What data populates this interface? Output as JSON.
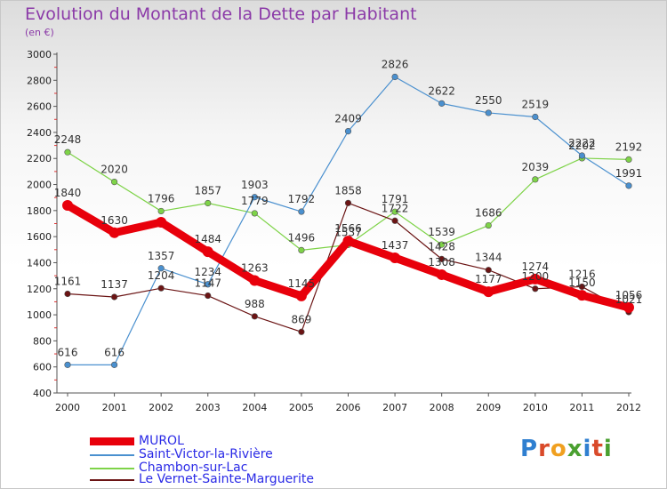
{
  "title": "Evolution du Montant de la Dette par Habitant",
  "subtitle": "(en €)",
  "logo": {
    "text": "Proxiti",
    "letter_colors": [
      "#2f7fd0",
      "#d94a2a",
      "#f0a020",
      "#4aa030",
      "#2f7fd0",
      "#d94a2a",
      "#4aa030"
    ]
  },
  "chart_data": {
    "type": "line",
    "title": "Evolution du Montant de la Dette par Habitant",
    "subtitle": "(en €)",
    "x": [
      "2000",
      "2001",
      "2002",
      "2003",
      "2004",
      "2005",
      "2006",
      "2007",
      "2008",
      "2009",
      "2010",
      "2011",
      "2012"
    ],
    "ylim": [
      400,
      3000
    ],
    "yticks": [
      "400",
      "600",
      "800",
      "1000",
      "1200",
      "1400",
      "1600",
      "1800",
      "2000",
      "2200",
      "2400",
      "2600",
      "2800",
      "3000"
    ],
    "grid": false,
    "legend_position": "bottom-left",
    "series": [
      {
        "name": "MUROL",
        "color": "#e8000b",
        "width": 9,
        "values": [
          1840,
          1630,
          1710,
          1484,
          1263,
          1145,
          1566,
          1437,
          1308,
          1177,
          1274,
          1150,
          1056
        ],
        "labels": [
          "1840",
          "1630",
          "",
          "1484",
          "1263",
          "1145",
          "1566",
          "1437",
          "1308",
          "1177",
          "1274",
          "1150",
          "1056"
        ]
      },
      {
        "name": "Saint-Victor-la-Rivière",
        "color": "#4a90cf",
        "width": 1.2,
        "values": [
          616,
          616,
          1357,
          1234,
          1903,
          1792,
          2409,
          2826,
          2622,
          2550,
          2519,
          2222,
          1991
        ],
        "labels": [
          "616",
          "616",
          "1357",
          "1234",
          "1903",
          "1792",
          "2409",
          "2826",
          "2622",
          "2550",
          "2519",
          "2222",
          "1991"
        ]
      },
      {
        "name": "Chambon-sur-Lac",
        "color": "#7ed348",
        "width": 1.2,
        "values": [
          2248,
          2020,
          1796,
          1857,
          1779,
          1496,
          1537,
          1791,
          1539,
          1686,
          2039,
          2202,
          2192
        ],
        "labels": [
          "2248",
          "2020",
          "1796",
          "1857",
          "1779",
          "1496",
          "1537",
          "1791",
          "1539",
          "1686",
          "2039",
          "2202",
          "2192"
        ]
      },
      {
        "name": "Le Vernet-Sainte-Marguerite",
        "color": "#6b1414",
        "width": 1.2,
        "values": [
          1161,
          1137,
          1204,
          1147,
          988,
          869,
          1858,
          1722,
          1428,
          1344,
          1200,
          1216,
          1021
        ],
        "labels": [
          "1161",
          "1137",
          "1204",
          "1147",
          "988",
          "869",
          "1858",
          "1722",
          "1428",
          "1344",
          "1200",
          "1216",
          "1021"
        ]
      }
    ]
  },
  "legend": [
    {
      "label": "MUROL"
    },
    {
      "label": "Saint-Victor-la-Rivière"
    },
    {
      "label": "Chambon-sur-Lac"
    },
    {
      "label": "Le Vernet-Sainte-Marguerite"
    }
  ]
}
